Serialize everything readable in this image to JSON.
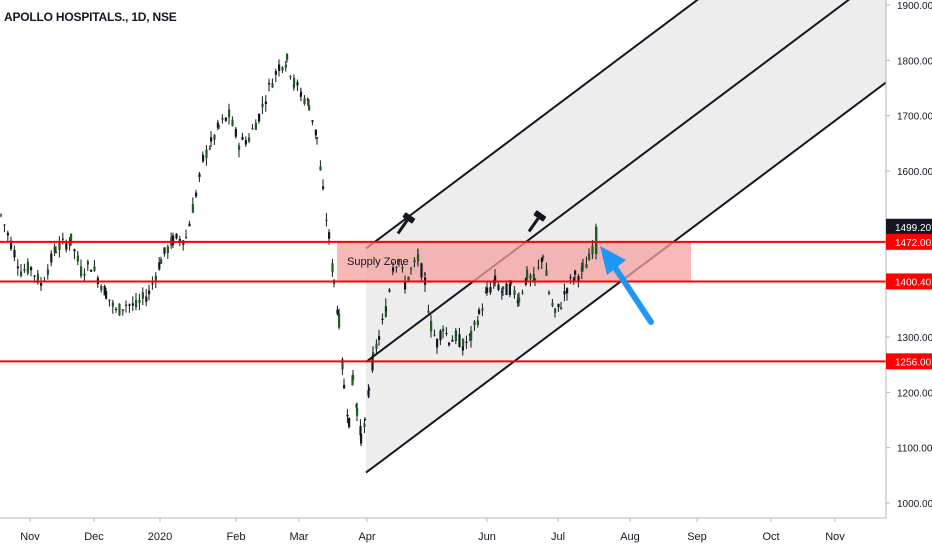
{
  "header": {
    "title": "APOLLO HOSPITALS., 1D, NSE"
  },
  "chart_data": {
    "type": "candlestick",
    "symbol": "APOLLO HOSPITALS.",
    "interval": "1D",
    "exchange": "NSE",
    "y_ticks": [
      "1000.00",
      "1100.00",
      "1200.00",
      "1300.00",
      "1400.00",
      "1500.00",
      "1600.00",
      "1700.00",
      "1800.00",
      "1900.00"
    ],
    "x_ticks": [
      "Nov",
      "Dec",
      "2020",
      "Feb",
      "Mar",
      "Apr",
      "Jun",
      "Jul",
      "Aug",
      "Sep",
      "Oct",
      "Nov"
    ],
    "price_labels": [
      {
        "value": "1499.20",
        "style": "last"
      },
      {
        "value": "1472.00",
        "style": "level"
      },
      {
        "value": "1400.40",
        "style": "level"
      },
      {
        "value": "1256.00",
        "style": "level"
      }
    ],
    "horizontal_levels": [
      1472.0,
      1400.4,
      1256.0
    ],
    "supply_zone": {
      "label": "Supply Zone",
      "top": 1472.0,
      "bottom": 1400.4,
      "from": "2020-03-25",
      "to": "2020-07-31"
    },
    "channel": {
      "anchor_start": "2020-04-01",
      "anchor_end": "2020-10-15",
      "lower_line": [
        1055,
        1760
      ],
      "middle_line": [
        1255,
        1960
      ],
      "upper_line": [
        1460,
        2165
      ]
    },
    "annotations": [
      "hammer-icon",
      "hammer-icon",
      "blue-arrow"
    ],
    "ylim": [
      1000,
      1900
    ],
    "colors": {
      "up": "#26a69a",
      "down": "#ef5350",
      "candle": "#131722",
      "level": "#ff0000",
      "zone": "#f4a0a0",
      "channel_fill": "#d6d6d6",
      "arrow": "#2196f3"
    }
  }
}
